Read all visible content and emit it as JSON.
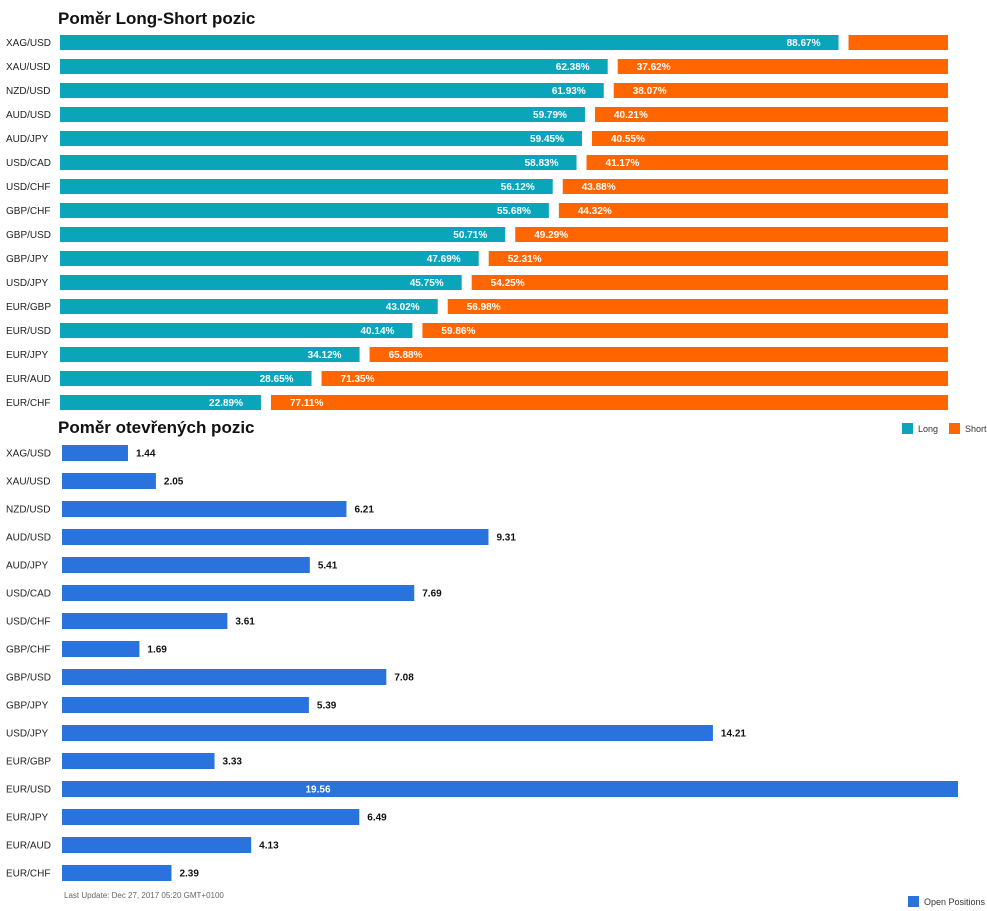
{
  "colors": {
    "long": "#0aa4bb",
    "short": "#ff6600",
    "open": "#2a72dc"
  },
  "chart_data": [
    {
      "type": "bar",
      "orientation": "horizontal",
      "stacked": true,
      "title": "Poměr Long-Short pozic",
      "categories": [
        "XAG/USD",
        "XAU/USD",
        "NZD/USD",
        "AUD/USD",
        "AUD/JPY",
        "USD/CAD",
        "USD/CHF",
        "GBP/CHF",
        "GBP/USD",
        "GBP/JPY",
        "USD/JPY",
        "EUR/GBP",
        "EUR/USD",
        "EUR/JPY",
        "EUR/AUD",
        "EUR/CHF"
      ],
      "series": [
        {
          "name": "Long",
          "values": [
            88.67,
            62.38,
            61.93,
            59.79,
            59.45,
            58.83,
            56.12,
            55.68,
            50.71,
            47.69,
            45.75,
            43.02,
            40.14,
            34.12,
            28.65,
            22.89
          ]
        },
        {
          "name": "Short",
          "values": [
            11.33,
            37.62,
            38.07,
            40.21,
            40.55,
            41.17,
            43.88,
            44.32,
            49.29,
            52.31,
            54.25,
            56.98,
            59.86,
            65.88,
            71.35,
            77.11
          ]
        }
      ],
      "labels": {
        "Long": [
          "88.67%",
          "62.38%",
          "61.93%",
          "59.79%",
          "59.45%",
          "58.83%",
          "56.12%",
          "55.68%",
          "50.71%",
          "47.69%",
          "45.75%",
          "43.02%",
          "40.14%",
          "34.12%",
          "28.65%",
          "22.89%"
        ],
        "Short": [
          "",
          "37.62%",
          "38.07%",
          "40.21%",
          "40.55%",
          "41.17%",
          "43.88%",
          "44.32%",
          "49.29%",
          "52.31%",
          "54.25%",
          "56.98%",
          "59.86%",
          "65.88%",
          "71.35%",
          "77.11%"
        ]
      },
      "xlim": [
        0,
        100
      ],
      "grid": false,
      "legend": [
        "Long",
        "Short"
      ],
      "legend_position": "top-right"
    },
    {
      "type": "bar",
      "orientation": "horizontal",
      "title": "Poměr otevřených pozic",
      "categories": [
        "XAG/USD",
        "XAU/USD",
        "NZD/USD",
        "AUD/USD",
        "AUD/JPY",
        "USD/CAD",
        "USD/CHF",
        "GBP/CHF",
        "GBP/USD",
        "GBP/JPY",
        "USD/JPY",
        "EUR/GBP",
        "EUR/USD",
        "EUR/JPY",
        "EUR/AUD",
        "EUR/CHF"
      ],
      "series": [
        {
          "name": "Open Positions",
          "values": [
            1.44,
            2.05,
            6.21,
            9.31,
            5.41,
            7.69,
            3.61,
            1.69,
            7.08,
            5.39,
            14.21,
            3.33,
            19.56,
            6.49,
            4.13,
            2.39
          ]
        }
      ],
      "labels": [
        "1.44",
        "2.05",
        "6.21",
        "9.31",
        "5.41",
        "7.69",
        "3.61",
        "1.69",
        "7.08",
        "5.39",
        "14.21",
        "3.33",
        "19.56",
        "6.49",
        "4.13",
        "2.39"
      ],
      "xlim": [
        0,
        19.56
      ],
      "grid": false,
      "legend": [
        "Open Positions"
      ],
      "legend_position": "bottom-right"
    }
  ],
  "footer": {
    "last_update": "Last Update: Dec 27, 2017 05:20 GMT+0100"
  }
}
